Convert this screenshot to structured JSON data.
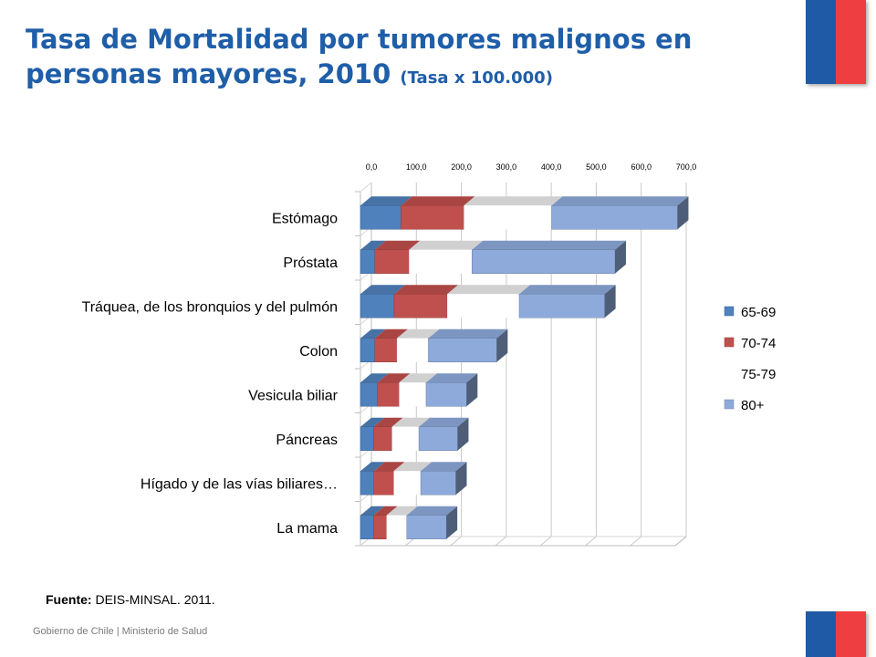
{
  "header": {
    "title_main": "Tasa de Mortalidad por tumores malignos en personas mayores, 2010",
    "title_sub": "(Tasa x 100.000)"
  },
  "source": {
    "label": "Fuente:",
    "text": " DEIS-MINSAL. 2011."
  },
  "footer": {
    "text": "Gobierno de Chile | Ministerio de Salud"
  },
  "colors": {
    "title": "#1f5ea8",
    "flag_blue": "#1f5aa6",
    "flag_red": "#ef3e42"
  },
  "chart_data": {
    "type": "bar",
    "orientation": "horizontal",
    "stacked": true,
    "title": "",
    "xlabel": "",
    "ylabel": "",
    "xlim": [
      0,
      700
    ],
    "ticks": [
      "0,0",
      "100,0",
      "200,0",
      "300,0",
      "400,0",
      "500,0",
      "600,0",
      "700,0"
    ],
    "categories": [
      "Estómago",
      "Próstata",
      "Tráquea, de los bronquios y del pulmón",
      "Colon",
      "Vesicula biliar",
      "Páncreas",
      "Hígado y de las vías biliares…",
      "La mama"
    ],
    "series": [
      {
        "name": "65-69",
        "color": "#4f81bd",
        "values": [
          90,
          32,
          75,
          32,
          38,
          29,
          30,
          29
        ]
      },
      {
        "name": "70-74",
        "color": "#c0504d",
        "values": [
          140,
          76,
          118,
          49,
          48,
          41,
          44,
          29
        ]
      },
      {
        "name": "75-79",
        "color": "#ffffff",
        "values": [
          195,
          140,
          160,
          70,
          60,
          60,
          60,
          45
        ]
      },
      {
        "name": "80+",
        "color": "#8eaadb",
        "values": [
          280,
          318,
          190,
          152,
          90,
          86,
          78,
          88
        ]
      }
    ],
    "legend_position": "right"
  }
}
